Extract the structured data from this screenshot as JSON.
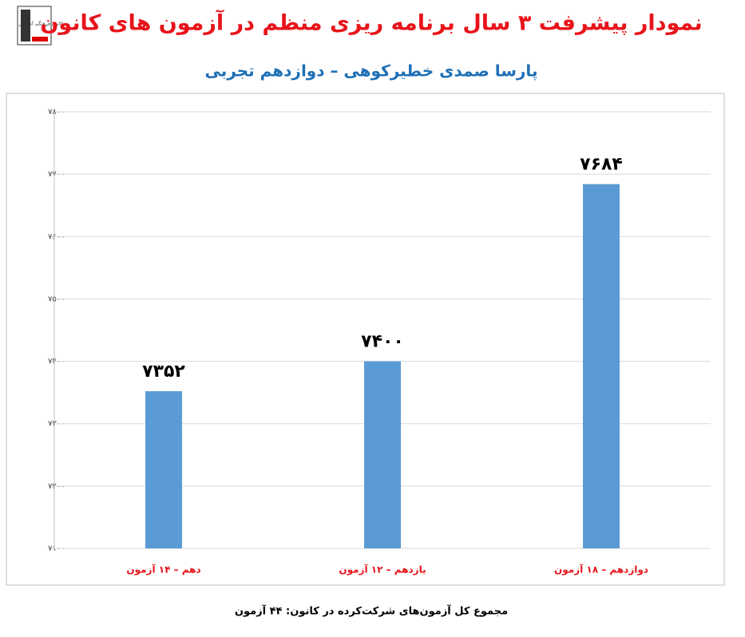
{
  "logo_text": "کانون فرهنگی آموزش",
  "chart_data": {
    "type": "bar",
    "title": "نمودار پیشرفت ۳ سال برنامه ریزی منظم در آزمون های کانون",
    "subtitle": "پارسا صمدی خطیرکوهی – دوازدهم تجربی",
    "footer": "مجموع کل آزمون‌های شرکت‌کرده در کانون: ۴۴ آزمون",
    "categories": [
      "دهم – ۱۴ آزمون",
      "یازدهم – ۱۲ آزمون",
      "دوازدهم – ۱۸ آزمون"
    ],
    "values": [
      7352,
      7400,
      7684
    ],
    "value_labels": [
      "۷۳۵۲",
      "۷۴۰۰",
      "۷۶۸۴"
    ],
    "color": "#5b9bd5",
    "ylim": [
      7100,
      7800
    ],
    "yticks": [
      {
        "value": 7100,
        "label": "۷۱۰۰"
      },
      {
        "value": 7200,
        "label": "۷۲۰۰"
      },
      {
        "value": 7300,
        "label": "۷۳۰۰"
      },
      {
        "value": 7400,
        "label": "۷۴۰۰"
      },
      {
        "value": 7500,
        "label": "۷۵۰۰"
      },
      {
        "value": 7600,
        "label": "۷۶۰۰"
      },
      {
        "value": 7700,
        "label": "۷۷۰۰"
      },
      {
        "value": 7800,
        "label": "۷۸۰۰"
      }
    ],
    "grid": true
  }
}
